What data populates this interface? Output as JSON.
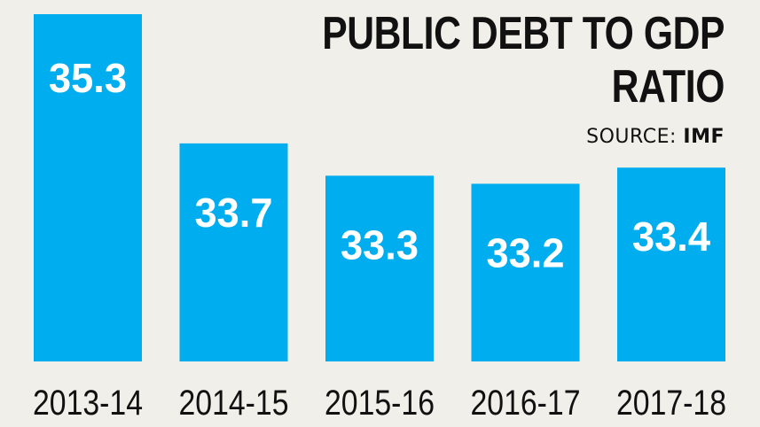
{
  "chart_data": {
    "type": "bar",
    "title_line1": "PUBLIC DEBT TO GDP",
    "title_line2": "RATIO",
    "source_label": "SOURCE:",
    "source_value": "IMF",
    "categories": [
      "2013-14",
      "2014-15",
      "2015-16",
      "2016-17",
      "2017-18"
    ],
    "values": [
      35.3,
      33.7,
      33.3,
      33.2,
      33.4
    ],
    "value_labels": [
      "35.3",
      "33.7",
      "33.3",
      "33.2",
      "33.4"
    ],
    "ylim": [
      31.0,
      35.3
    ],
    "bar_color": "#00aeef",
    "grid": false
  }
}
